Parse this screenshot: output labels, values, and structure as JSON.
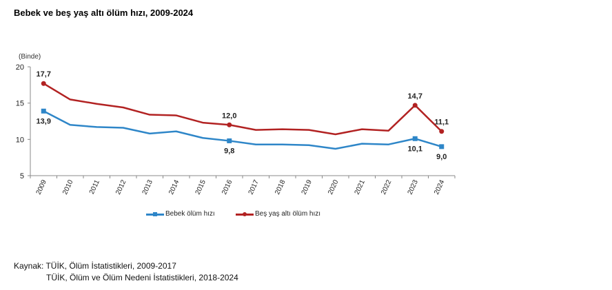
{
  "chart_data": {
    "type": "line",
    "title": "Bebek ve beş yaş altı ölüm hızı, 2009-2024",
    "ylabel": "(Binde)",
    "xlabel": "",
    "ylim": [
      5,
      20
    ],
    "yticks": [
      "5",
      "10",
      "15",
      "20"
    ],
    "ytick_values": [
      5,
      10,
      15,
      20
    ],
    "categories": [
      "2009",
      "2010",
      "2011",
      "2012",
      "2013",
      "2014",
      "2015",
      "2016",
      "2017",
      "2018",
      "2019",
      "2020",
      "2021",
      "2022",
      "2023",
      "2024"
    ],
    "grid": false,
    "legend_position": "bottom",
    "series": [
      {
        "name": "Bebek ölüm hızı",
        "color": "#2E86C8",
        "marker": "square",
        "values": [
          13.9,
          12.0,
          11.7,
          11.6,
          10.8,
          11.1,
          10.2,
          9.8,
          9.3,
          9.3,
          9.2,
          8.7,
          9.4,
          9.3,
          10.1,
          9.0
        ],
        "labels": [
          {
            "index": 0,
            "text": "13,9",
            "position": "below"
          },
          {
            "index": 7,
            "text": "9,8",
            "position": "below"
          },
          {
            "index": 14,
            "text": "10,1",
            "position": "below"
          },
          {
            "index": 15,
            "text": "9,0",
            "position": "below"
          }
        ]
      },
      {
        "name": "Beş yaş altı ölüm hızı",
        "color": "#B22222",
        "marker": "circle",
        "values": [
          17.7,
          15.5,
          14.9,
          14.4,
          13.4,
          13.3,
          12.3,
          12.0,
          11.3,
          11.4,
          11.3,
          10.7,
          11.4,
          11.2,
          14.7,
          11.1
        ],
        "labels": [
          {
            "index": 0,
            "text": "17,7",
            "position": "above"
          },
          {
            "index": 7,
            "text": "12,0",
            "position": "above"
          },
          {
            "index": 14,
            "text": "14,7",
            "position": "above"
          },
          {
            "index": 15,
            "text": "11,1",
            "position": "above"
          }
        ]
      }
    ]
  },
  "legend": {
    "items": [
      "Bebek ölüm hızı",
      "Beş yaş altı ölüm hızı"
    ]
  },
  "source": {
    "line1": "Kaynak: TÜİK, Ölüm İstatistikleri, 2009-2017",
    "line2": "TÜİK, Ölüm ve Ölüm Nedeni İstatistikleri, 2018-2024"
  }
}
